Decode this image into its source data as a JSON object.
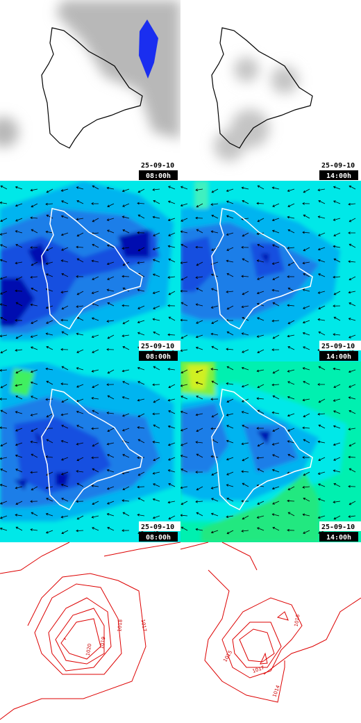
{
  "rows": [
    {
      "panels": [
        {
          "date": "25-09-10",
          "time": "08:00h"
        },
        {
          "date": "25-09-10",
          "time": "14:00h"
        }
      ]
    },
    {
      "panels": [
        {
          "date": "25-09-10",
          "time": "08:00h"
        },
        {
          "date": "25-09-10",
          "time": "14:00h"
        }
      ]
    },
    {
      "panels": [
        {
          "date": "25-09-10",
          "time": "08:00h"
        },
        {
          "date": "25-09-10",
          "time": "14:00h"
        }
      ]
    },
    {
      "panels": [
        {
          "contour_labels": [
            "1020",
            "1019",
            "1018",
            "1017"
          ]
        },
        {
          "contour_labels": [
            "1016",
            "1015",
            "1017",
            "1014"
          ]
        }
      ]
    }
  ]
}
